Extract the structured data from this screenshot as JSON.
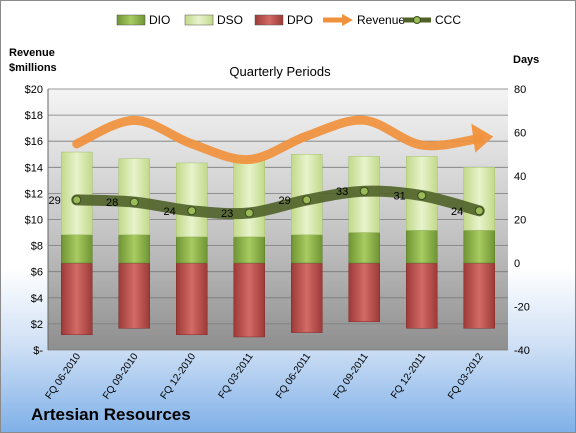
{
  "company": "Artesian Resources",
  "chart_data": {
    "type": "bar",
    "title": "Quarterly Periods",
    "categories": [
      "FQ 06-2010",
      "FQ 09-2010",
      "FQ 12-2010",
      "FQ 03-2011",
      "FQ 06-2011",
      "FQ 09-2011",
      "FQ 12-2011",
      "FQ 03-2012"
    ],
    "left_axis": {
      "label_line1": "Revenue",
      "label_line2": "$millions",
      "ylim": [
        0,
        20
      ],
      "ticks": [
        "$-",
        "$2",
        "$4",
        "$6",
        "$8",
        "$10",
        "$12",
        "$14",
        "$16",
        "$18",
        "$20"
      ]
    },
    "right_axis": {
      "label": "Days",
      "ylim": [
        -40,
        80
      ],
      "ticks": [
        "-40",
        "-20",
        "0",
        "20",
        "40",
        "60",
        "80"
      ]
    },
    "series": [
      {
        "name": "DIO",
        "kind": "stacked-bar",
        "color": "#8db34a",
        "values": [
          13,
          13,
          12,
          12,
          13,
          14,
          15,
          15
        ]
      },
      {
        "name": "DSO",
        "kind": "stacked-bar",
        "color": "#d4e6a8",
        "values": [
          38,
          35,
          34,
          35,
          37,
          35,
          34,
          29
        ]
      },
      {
        "name": "DPO",
        "kind": "negative-bar",
        "color": "#c0504d",
        "values": [
          -33,
          -30,
          -33,
          -34,
          -32,
          -27,
          -30,
          -30
        ]
      },
      {
        "name": "Revenue",
        "kind": "line",
        "axis": "left",
        "color": "#f0913c",
        "values": [
          15.8,
          17.6,
          15.8,
          14.6,
          16.4,
          17.6,
          15.7,
          16.2
        ]
      },
      {
        "name": "CCC",
        "kind": "line",
        "axis": "right",
        "color": "#4f6228",
        "values": [
          29,
          28,
          24,
          23,
          29,
          33,
          31,
          24
        ]
      }
    ],
    "data_labels": [
      "29",
      "28",
      "24",
      "23",
      "29",
      "33",
      "31",
      "24"
    ],
    "grid": true,
    "legend": "top"
  }
}
